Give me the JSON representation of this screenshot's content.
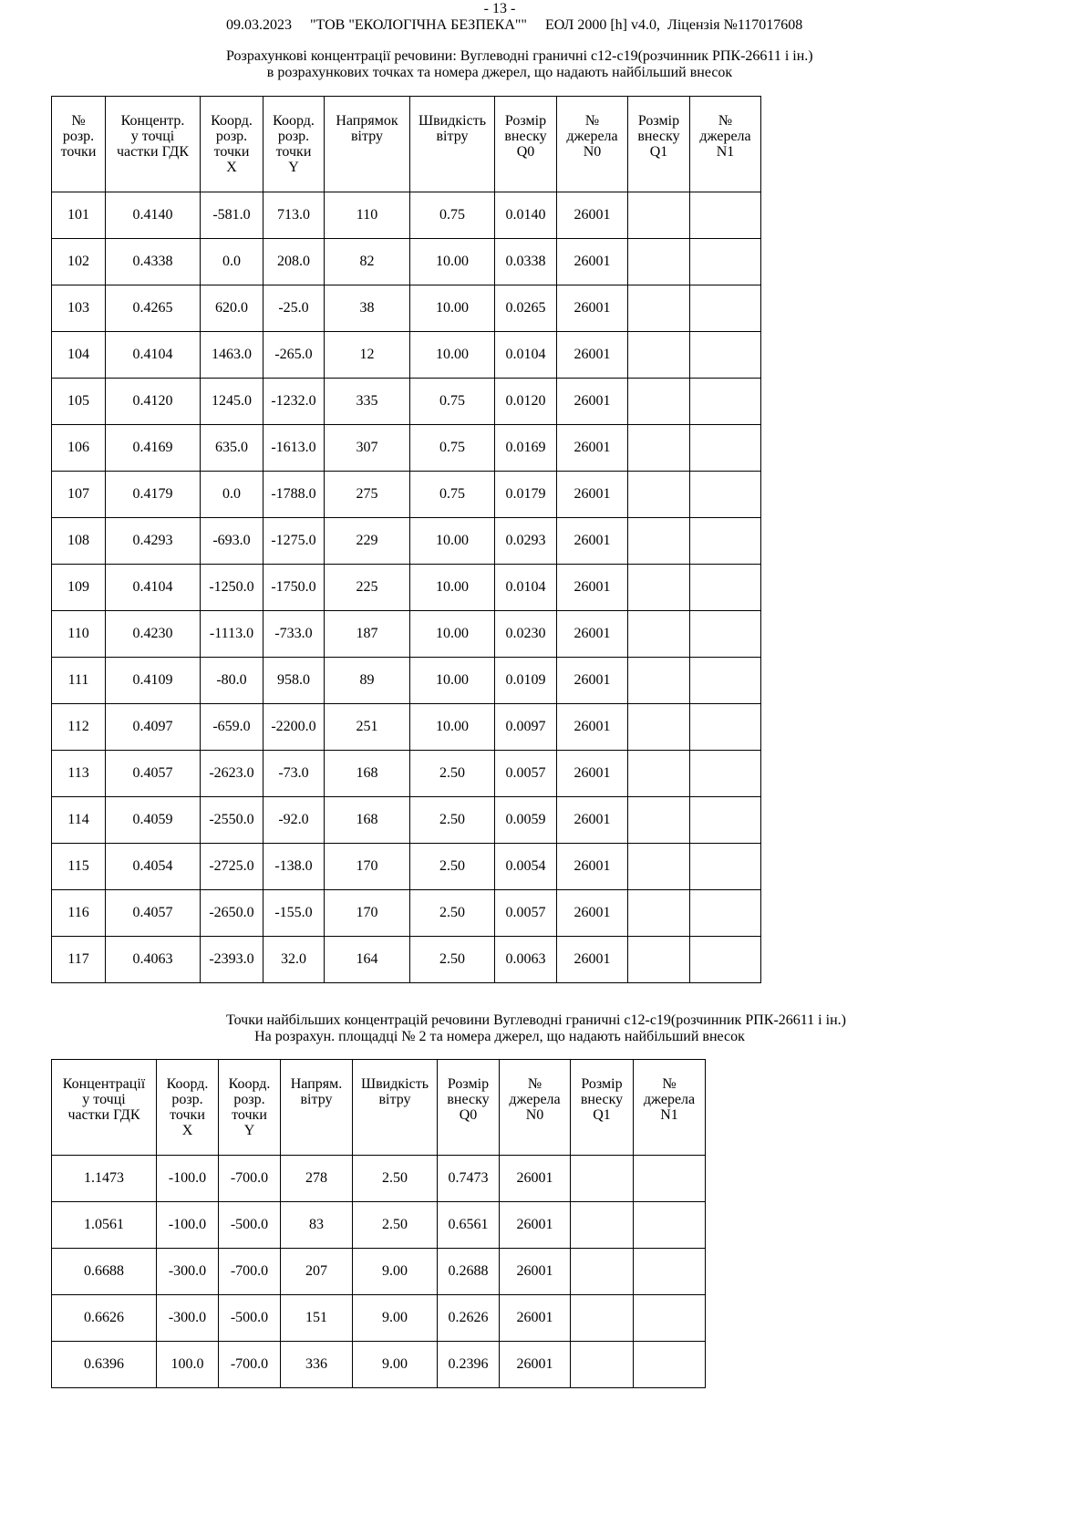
{
  "header": {
    "page_number": "- 13 -",
    "info_line": "09.03.2023     \"ТОВ \"ЕКОЛОГІЧНА БЕЗПЕКА\"\"     ЕОЛ 2000 [h] v4.0,  Ліцензія №117017608"
  },
  "table1": {
    "title_line1": "Розрахункові концентрації речовини: Вуглеводні граничні с12-с19(розчинник РПК-26611 і ін.)",
    "title_line2": "в розрахункових точках  та номера джерел, що надають найбільший внесок",
    "columns": [
      [
        "№",
        "розр.",
        "точки"
      ],
      [
        "Концентр.",
        "у точці",
        "частки ГДК"
      ],
      [
        "Коорд.",
        "розр.",
        "точки",
        "X"
      ],
      [
        "Коорд.",
        "розр.",
        "точки",
        "Y"
      ],
      [
        "Напрямок",
        "вітру"
      ],
      [
        "Швидкість",
        "вітру"
      ],
      [
        "Розмір",
        "внеску",
        "Q0"
      ],
      [
        "№",
        "джерела",
        "N0"
      ],
      [
        "Розмір",
        "внеску",
        "Q1"
      ],
      [
        "№",
        "джерела",
        "N1"
      ]
    ],
    "rows": [
      [
        "101",
        "0.4140",
        "-581.0",
        "713.0",
        "110",
        "0.75",
        "0.0140",
        "26001",
        "",
        ""
      ],
      [
        "102",
        "0.4338",
        "0.0",
        "208.0",
        "82",
        "10.00",
        "0.0338",
        "26001",
        "",
        ""
      ],
      [
        "103",
        "0.4265",
        "620.0",
        "-25.0",
        "38",
        "10.00",
        "0.0265",
        "26001",
        "",
        ""
      ],
      [
        "104",
        "0.4104",
        "1463.0",
        "-265.0",
        "12",
        "10.00",
        "0.0104",
        "26001",
        "",
        ""
      ],
      [
        "105",
        "0.4120",
        "1245.0",
        "-1232.0",
        "335",
        "0.75",
        "0.0120",
        "26001",
        "",
        ""
      ],
      [
        "106",
        "0.4169",
        "635.0",
        "-1613.0",
        "307",
        "0.75",
        "0.0169",
        "26001",
        "",
        ""
      ],
      [
        "107",
        "0.4179",
        "0.0",
        "-1788.0",
        "275",
        "0.75",
        "0.0179",
        "26001",
        "",
        ""
      ],
      [
        "108",
        "0.4293",
        "-693.0",
        "-1275.0",
        "229",
        "10.00",
        "0.0293",
        "26001",
        "",
        ""
      ],
      [
        "109",
        "0.4104",
        "-1250.0",
        "-1750.0",
        "225",
        "10.00",
        "0.0104",
        "26001",
        "",
        ""
      ],
      [
        "110",
        "0.4230",
        "-1113.0",
        "-733.0",
        "187",
        "10.00",
        "0.0230",
        "26001",
        "",
        ""
      ],
      [
        "111",
        "0.4109",
        "-80.0",
        "958.0",
        "89",
        "10.00",
        "0.0109",
        "26001",
        "",
        ""
      ],
      [
        "112",
        "0.4097",
        "-659.0",
        "-2200.0",
        "251",
        "10.00",
        "0.0097",
        "26001",
        "",
        ""
      ],
      [
        "113",
        "0.4057",
        "-2623.0",
        "-73.0",
        "168",
        "2.50",
        "0.0057",
        "26001",
        "",
        ""
      ],
      [
        "114",
        "0.4059",
        "-2550.0",
        "-92.0",
        "168",
        "2.50",
        "0.0059",
        "26001",
        "",
        ""
      ],
      [
        "115",
        "0.4054",
        "-2725.0",
        "-138.0",
        "170",
        "2.50",
        "0.0054",
        "26001",
        "",
        ""
      ],
      [
        "116",
        "0.4057",
        "-2650.0",
        "-155.0",
        "170",
        "2.50",
        "0.0057",
        "26001",
        "",
        ""
      ],
      [
        "117",
        "0.4063",
        "-2393.0",
        "32.0",
        "164",
        "2.50",
        "0.0063",
        "26001",
        "",
        ""
      ]
    ]
  },
  "table2": {
    "title_line1": "Точки найбільших концентрацій речовини Вуглеводні граничні с12-с19(розчинник РПК-26611 і ін.)",
    "title_line2": "На розрахун. площадці № 2 та номера джерел, що надають найбільший внесок",
    "columns": [
      [
        "Концентрації",
        "у точці",
        "частки ГДК"
      ],
      [
        "Коорд.",
        "розр.",
        "точки",
        "X"
      ],
      [
        "Коорд.",
        "розр.",
        "точки",
        "Y"
      ],
      [
        "Напрям.",
        "вітру"
      ],
      [
        "Швидкість",
        "вітру"
      ],
      [
        "Розмір",
        "внеску",
        "Q0"
      ],
      [
        "№",
        "джерела",
        "N0"
      ],
      [
        "Розмір",
        "внеску",
        "Q1"
      ],
      [
        "№",
        "джерела",
        "N1"
      ]
    ],
    "rows": [
      [
        "1.1473",
        "-100.0",
        "-700.0",
        "278",
        "2.50",
        "0.7473",
        "26001",
        "",
        ""
      ],
      [
        "1.0561",
        "-100.0",
        "-500.0",
        "83",
        "2.50",
        "0.6561",
        "26001",
        "",
        ""
      ],
      [
        "0.6688",
        "-300.0",
        "-700.0",
        "207",
        "9.00",
        "0.2688",
        "26001",
        "",
        ""
      ],
      [
        "0.6626",
        "-300.0",
        "-500.0",
        "151",
        "9.00",
        "0.2626",
        "26001",
        "",
        ""
      ],
      [
        "0.6396",
        "100.0",
        "-700.0",
        "336",
        "9.00",
        "0.2396",
        "26001",
        "",
        ""
      ]
    ]
  }
}
